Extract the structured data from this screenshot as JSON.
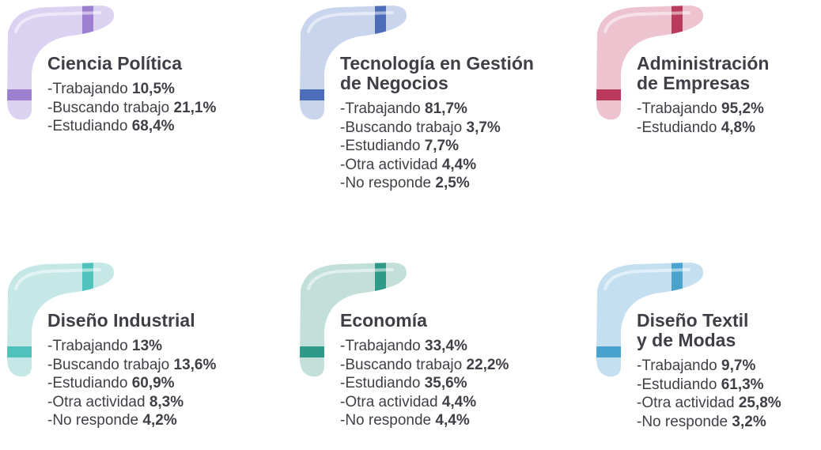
{
  "cards": [
    {
      "title": [
        "Ciencia Política"
      ],
      "items": [
        {
          "label": "-Trabajando",
          "value": "10,5%"
        },
        {
          "label": "-Buscando trabajo",
          "value": "21,1%"
        },
        {
          "label": "-Estudiando",
          "value": "68,4%"
        }
      ]
    },
    {
      "title": [
        "Tecnología en Gestión",
        "de Negocios"
      ],
      "items": [
        {
          "label": "-Trabajando",
          "value": "81,7%"
        },
        {
          "label": "-Buscando trabajo",
          "value": "3,7%"
        },
        {
          "label": "-Estudiando",
          "value": "7,7%"
        },
        {
          "label": "-Otra actividad",
          "value": "4,4%"
        },
        {
          "label": "-No responde",
          "value": "2,5%"
        }
      ]
    },
    {
      "title": [
        "Administración",
        "de Empresas"
      ],
      "items": [
        {
          "label": "-Trabajando",
          "value": "95,2%"
        },
        {
          "label": "-Estudiando",
          "value": "4,8%"
        }
      ]
    },
    {
      "title": [
        "Diseño Industrial"
      ],
      "items": [
        {
          "label": "-Trabajando",
          "value": "13%"
        },
        {
          "label": "-Buscando trabajo",
          "value": "13,6%"
        },
        {
          "label": "-Estudiando",
          "value": "60,9%"
        },
        {
          "label": "-Otra actividad",
          "value": "8,3%"
        },
        {
          "label": "-No responde",
          "value": "4,2%"
        }
      ]
    },
    {
      "title": [
        "Economía"
      ],
      "items": [
        {
          "label": "-Trabajando",
          "value": "33,4%"
        },
        {
          "label": "-Buscando trabajo",
          "value": "22,2%"
        },
        {
          "label": "-Estudiando",
          "value": "35,6%"
        },
        {
          "label": "-Otra actividad",
          "value": "4,4%"
        },
        {
          "label": "-No responde",
          "value": "4,4%"
        }
      ]
    },
    {
      "title": [
        "Diseño Textil",
        "y de Modas"
      ],
      "items": [
        {
          "label": "-Trabajando",
          "value": "9,7%"
        },
        {
          "label": "-Estudiando",
          "value": "61,3%"
        },
        {
          "label": "-Otra actividad",
          "value": "25,8%"
        },
        {
          "label": "-No responde",
          "value": "3,2%"
        }
      ]
    }
  ]
}
